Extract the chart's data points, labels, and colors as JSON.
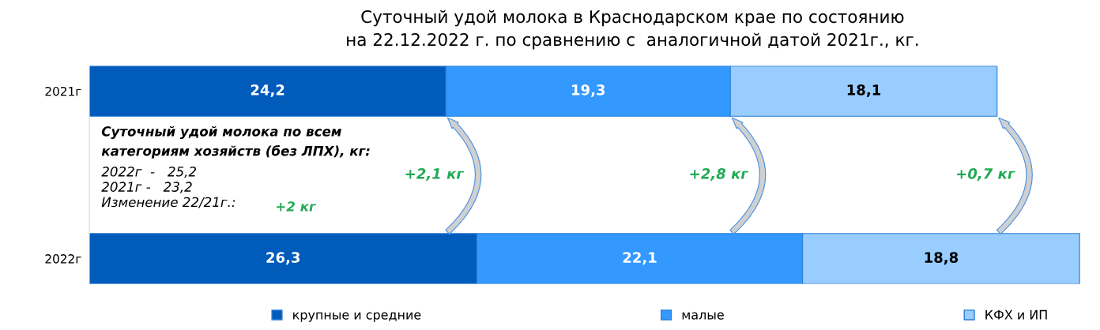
{
  "chart_data": {
    "type": "bar",
    "orientation": "horizontal",
    "stacked": true,
    "title": "Суточный удой молока в Краснодарском крае по состоянию\nна 22.12.2022 г. по сравнению с  аналогичной датой 2021г., кг.",
    "categories": [
      "2021г",
      "2022г"
    ],
    "series": [
      {
        "name": "крупные и средние",
        "color": "#005bbb",
        "values": [
          24.2,
          26.3
        ],
        "value_labels": [
          "24,2",
          "26,3"
        ]
      },
      {
        "name": "малые",
        "color": "#3399ff",
        "values": [
          19.3,
          22.1
        ],
        "value_labels": [
          "19,3",
          "22,1"
        ]
      },
      {
        "name": "КФХ и ИП",
        "color": "#99ccff",
        "values": [
          18.1,
          18.8
        ],
        "value_labels": [
          "18,1",
          "18,8"
        ]
      }
    ],
    "annotations": [
      "Суточный удой молока по всем\nкатегориям хозяйств (без ЛПХ), кг:",
      "2022г  -   25,2",
      "2021г -   23,2",
      "Изменение 22/21г.:",
      "+2 кг",
      "+2,1 кг",
      "+2,8 кг",
      "+0,7 кг"
    ],
    "legend": "bottom",
    "tick_labels": "y",
    "grid": false
  }
}
